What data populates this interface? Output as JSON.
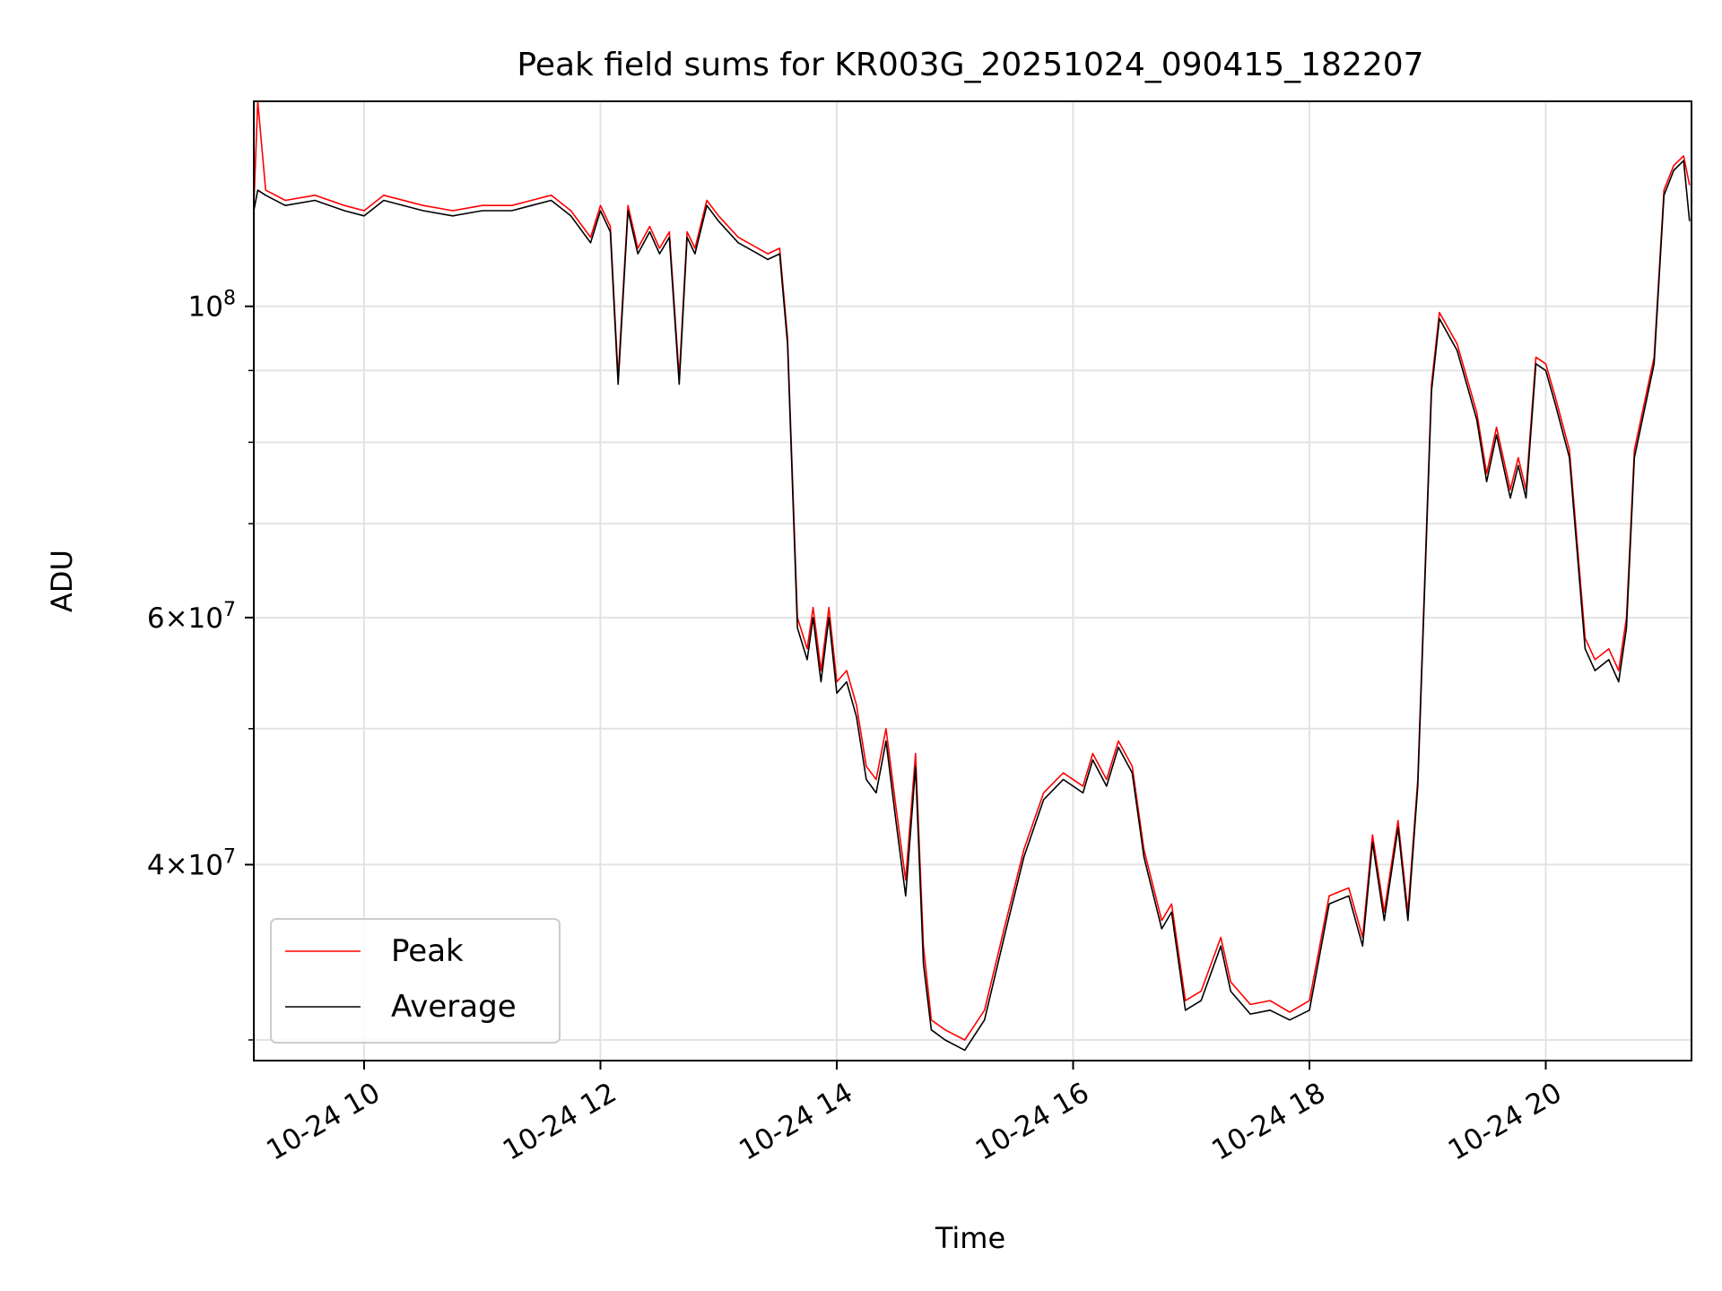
{
  "chart_data": {
    "type": "line",
    "title": "Peak field sums for KR003G_20251024_090415_182207",
    "xlabel": "Time",
    "ylabel": "ADU",
    "y_scale": "log",
    "ylim": [
      29000000,
      140000000
    ],
    "xlim": [
      "2025-10-24 09:04",
      "2025-10-24 21:14"
    ],
    "grid": true,
    "legend": {
      "location": "lower-left",
      "entries": [
        "Peak",
        "Average"
      ]
    },
    "x_ticks": [
      {
        "t": "2025-10-24 10:00",
        "label": "10-24 10"
      },
      {
        "t": "2025-10-24 12:00",
        "label": "10-24 12"
      },
      {
        "t": "2025-10-24 14:00",
        "label": "10-24 14"
      },
      {
        "t": "2025-10-24 16:00",
        "label": "10-24 16"
      },
      {
        "t": "2025-10-24 18:00",
        "label": "10-24 18"
      },
      {
        "t": "2025-10-24 20:00",
        "label": "10-24 20"
      }
    ],
    "y_major_ticks": [
      {
        "value": 40000000,
        "mantissa": "4",
        "exponent": "7"
      },
      {
        "value": 60000000,
        "mantissa": "6",
        "exponent": "7"
      },
      {
        "value": 100000000,
        "mantissa": "",
        "exponent": "8"
      }
    ],
    "y_minor_ticks": [
      30000000,
      50000000,
      70000000,
      80000000,
      90000000
    ],
    "x": [
      "2025-10-24 09:04",
      "2025-10-24 09:06",
      "2025-10-24 09:10",
      "2025-10-24 09:20",
      "2025-10-24 09:35",
      "2025-10-24 09:50",
      "2025-10-24 10:00",
      "2025-10-24 10:10",
      "2025-10-24 10:30",
      "2025-10-24 10:45",
      "2025-10-24 11:00",
      "2025-10-24 11:15",
      "2025-10-24 11:25",
      "2025-10-24 11:35",
      "2025-10-24 11:45",
      "2025-10-24 11:55",
      "2025-10-24 12:00",
      "2025-10-24 12:05",
      "2025-10-24 12:09",
      "2025-10-24 12:14",
      "2025-10-24 12:19",
      "2025-10-24 12:25",
      "2025-10-24 12:30",
      "2025-10-24 12:35",
      "2025-10-24 12:40",
      "2025-10-24 12:44",
      "2025-10-24 12:48",
      "2025-10-24 12:54",
      "2025-10-24 13:00",
      "2025-10-24 13:10",
      "2025-10-24 13:20",
      "2025-10-24 13:25",
      "2025-10-24 13:31",
      "2025-10-24 13:35",
      "2025-10-24 13:40",
      "2025-10-24 13:45",
      "2025-10-24 13:48",
      "2025-10-24 13:52",
      "2025-10-24 13:56",
      "2025-10-24 14:00",
      "2025-10-24 14:05",
      "2025-10-24 14:10",
      "2025-10-24 14:15",
      "2025-10-24 14:20",
      "2025-10-24 14:25",
      "2025-10-24 14:30",
      "2025-10-24 14:35",
      "2025-10-24 14:40",
      "2025-10-24 14:44",
      "2025-10-24 14:48",
      "2025-10-24 14:55",
      "2025-10-24 15:05",
      "2025-10-24 15:15",
      "2025-10-24 15:25",
      "2025-10-24 15:35",
      "2025-10-24 15:45",
      "2025-10-24 15:55",
      "2025-10-24 16:05",
      "2025-10-24 16:10",
      "2025-10-24 16:17",
      "2025-10-24 16:23",
      "2025-10-24 16:30",
      "2025-10-24 16:36",
      "2025-10-24 16:45",
      "2025-10-24 16:50",
      "2025-10-24 16:57",
      "2025-10-24 17:05",
      "2025-10-24 17:15",
      "2025-10-24 17:20",
      "2025-10-24 17:30",
      "2025-10-24 17:40",
      "2025-10-24 17:50",
      "2025-10-24 18:00",
      "2025-10-24 18:10",
      "2025-10-24 18:20",
      "2025-10-24 18:27",
      "2025-10-24 18:32",
      "2025-10-24 18:38",
      "2025-10-24 18:45",
      "2025-10-24 18:50",
      "2025-10-24 18:55",
      "2025-10-24 19:02",
      "2025-10-24 19:06",
      "2025-10-24 19:15",
      "2025-10-24 19:25",
      "2025-10-24 19:30",
      "2025-10-24 19:35",
      "2025-10-24 19:42",
      "2025-10-24 19:46",
      "2025-10-24 19:50",
      "2025-10-24 19:55",
      "2025-10-24 20:00",
      "2025-10-24 20:05",
      "2025-10-24 20:12",
      "2025-10-24 20:20",
      "2025-10-24 20:25",
      "2025-10-24 20:32",
      "2025-10-24 20:37",
      "2025-10-24 20:41",
      "2025-10-24 20:45",
      "2025-10-24 20:55",
      "2025-10-24 21:00",
      "2025-10-24 21:05",
      "2025-10-24 21:10",
      "2025-10-24 21:13"
    ],
    "series": [
      {
        "name": "Peak",
        "color": "#ff0000",
        "values": [
          118000000,
          140000000,
          121000000,
          119000000,
          120000000,
          118000000,
          117000000,
          120000000,
          118000000,
          117000000,
          118000000,
          118000000,
          119000000,
          120000000,
          117000000,
          112000000,
          118000000,
          114000000,
          89000000,
          118000000,
          110000000,
          114000000,
          110000000,
          113000000,
          89000000,
          113000000,
          110000000,
          119000000,
          116000000,
          112000000,
          110000000,
          109000000,
          110000000,
          95000000,
          60000000,
          57000000,
          61000000,
          55000000,
          61000000,
          54000000,
          55000000,
          52000000,
          47000000,
          46000000,
          50000000,
          44000000,
          39000000,
          48000000,
          35000000,
          31000000,
          30500000,
          30000000,
          31500000,
          36000000,
          41000000,
          45000000,
          46500000,
          45500000,
          48000000,
          46000000,
          49000000,
          47000000,
          41000000,
          36500000,
          37500000,
          32000000,
          32500000,
          35500000,
          33000000,
          31800000,
          32000000,
          31400000,
          32000000,
          38000000,
          38500000,
          35500000,
          42000000,
          37000000,
          43000000,
          37000000,
          46000000,
          88000000,
          99000000,
          94000000,
          84000000,
          76000000,
          82000000,
          74000000,
          78000000,
          74000000,
          92000000,
          91000000,
          86000000,
          79000000,
          58000000,
          56000000,
          57000000,
          55000000,
          60000000,
          79000000,
          92000000,
          121000000,
          126000000,
          128000000,
          122000000
        ]
      },
      {
        "name": "Average",
        "color": "#000000",
        "values": [
          117000000,
          121000000,
          120000000,
          118000000,
          119000000,
          117000000,
          116000000,
          119000000,
          117000000,
          116000000,
          117000000,
          117000000,
          118000000,
          119000000,
          116000000,
          111000000,
          117000000,
          113000000,
          88000000,
          117000000,
          109000000,
          113000000,
          109000000,
          112000000,
          88000000,
          112000000,
          109000000,
          118000000,
          115000000,
          111000000,
          109000000,
          108000000,
          109000000,
          94000000,
          59000000,
          56000000,
          60000000,
          54000000,
          60000000,
          53000000,
          54000000,
          51000000,
          46000000,
          45000000,
          49000000,
          43000000,
          38000000,
          47000000,
          34000000,
          30500000,
          30000000,
          29500000,
          31000000,
          35500000,
          40500000,
          44500000,
          46000000,
          45000000,
          47500000,
          45500000,
          48500000,
          46500000,
          40500000,
          36000000,
          37000000,
          31500000,
          32000000,
          35000000,
          32500000,
          31300000,
          31500000,
          31000000,
          31500000,
          37500000,
          38000000,
          35000000,
          41500000,
          36500000,
          42500000,
          36500000,
          45500000,
          87000000,
          98000000,
          93000000,
          83000000,
          75000000,
          81000000,
          73000000,
          77000000,
          73000000,
          91000000,
          90000000,
          85000000,
          78000000,
          57000000,
          55000000,
          56000000,
          54000000,
          59000000,
          78000000,
          91000000,
          120000000,
          125000000,
          127000000,
          115000000
        ]
      }
    ]
  }
}
